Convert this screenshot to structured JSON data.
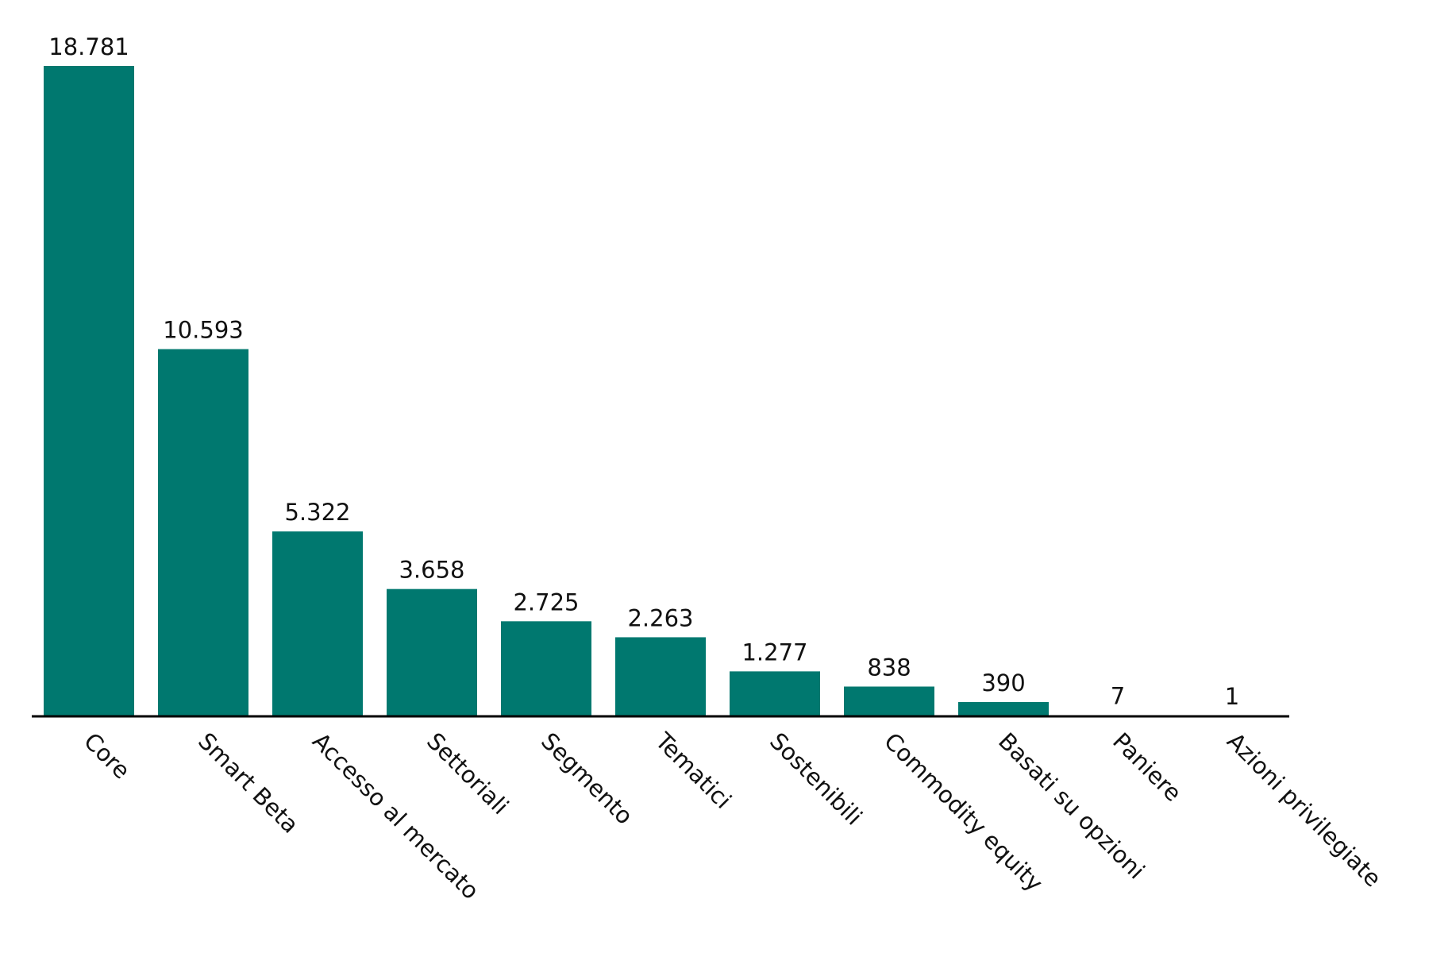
{
  "chart_data": {
    "type": "bar",
    "categories": [
      "Core",
      "Smart Beta",
      "Accesso al mercato",
      "Settoriali",
      "Segmento",
      "Tematici",
      "Sostenibili",
      "Commodity equity",
      "Basati su opzioni",
      "Paniere",
      "Azioni privilegiate"
    ],
    "values": [
      18781,
      10593,
      5322,
      3658,
      2725,
      2263,
      1277,
      838,
      390,
      7,
      1
    ],
    "value_labels": [
      "18.781",
      "10.593",
      "5.322",
      "3.658",
      "2.725",
      "2.263",
      "1.277",
      "838",
      "390",
      "7",
      "1"
    ],
    "color": "#00786f"
  }
}
